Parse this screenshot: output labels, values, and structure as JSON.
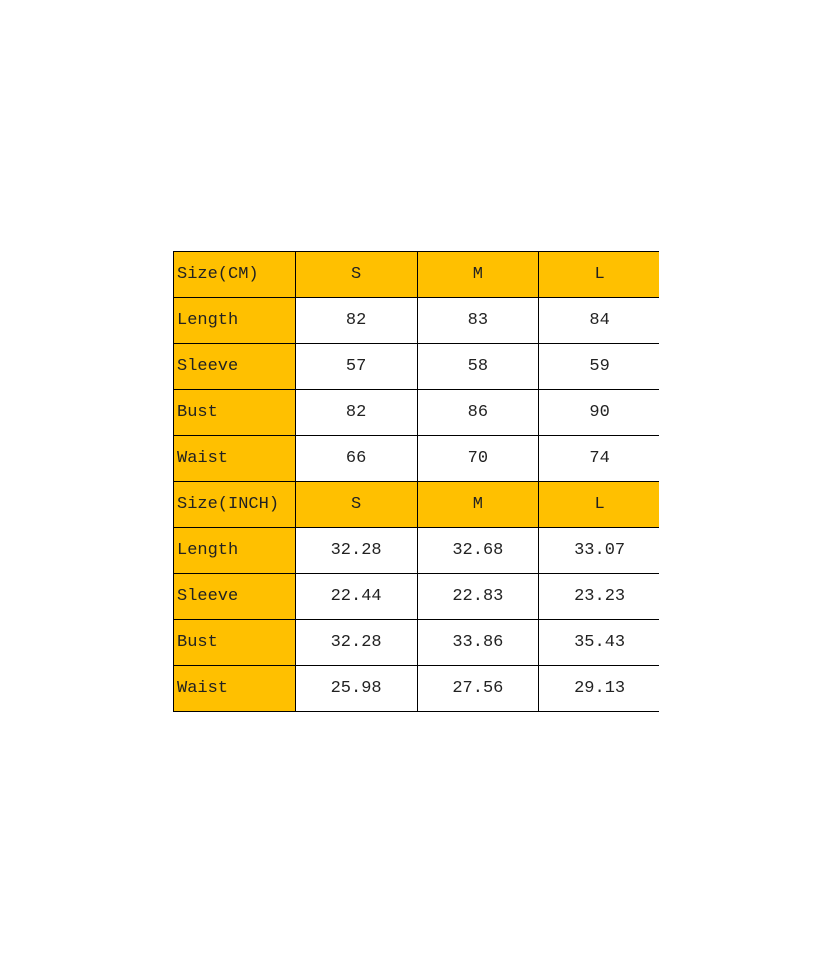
{
  "sections": [
    {
      "header": [
        "Size(CM)",
        "S",
        "M",
        "L"
      ],
      "rows": [
        [
          "Length",
          "82",
          "83",
          "84"
        ],
        [
          "Sleeve",
          "57",
          "58",
          "59"
        ],
        [
          "Bust",
          "82",
          "86",
          "90"
        ],
        [
          "Waist",
          "66",
          "70",
          "74"
        ]
      ]
    },
    {
      "header": [
        "Size(INCH)",
        "S",
        "M",
        "L"
      ],
      "rows": [
        [
          "Length",
          "32.28",
          "32.68",
          "33.07"
        ],
        [
          "Sleeve",
          "22.44",
          "22.83",
          "23.23"
        ],
        [
          "Bust",
          "32.28",
          "33.86",
          "35.43"
        ],
        [
          "Waist",
          "25.98",
          "27.56",
          "29.13"
        ]
      ]
    }
  ]
}
